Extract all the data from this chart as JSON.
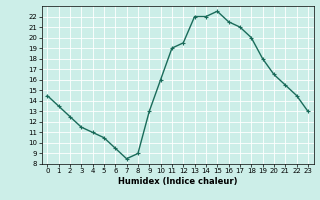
{
  "x": [
    0,
    1,
    2,
    3,
    4,
    5,
    6,
    7,
    8,
    9,
    10,
    11,
    12,
    13,
    14,
    15,
    16,
    17,
    18,
    19,
    20,
    21,
    22,
    23
  ],
  "y": [
    14.5,
    13.5,
    12.5,
    11.5,
    11.0,
    10.5,
    9.5,
    8.5,
    9.0,
    13.0,
    16.0,
    19.0,
    19.5,
    22.0,
    22.0,
    22.5,
    21.5,
    21.0,
    20.0,
    18.0,
    16.5,
    15.5,
    14.5,
    13.0
  ],
  "xlabel": "Humidex (Indice chaleur)",
  "ylim": [
    8,
    23
  ],
  "xlim": [
    -0.5,
    23.5
  ],
  "yticks": [
    8,
    9,
    10,
    11,
    12,
    13,
    14,
    15,
    16,
    17,
    18,
    19,
    20,
    21,
    22
  ],
  "xticks": [
    0,
    1,
    2,
    3,
    4,
    5,
    6,
    7,
    8,
    9,
    10,
    11,
    12,
    13,
    14,
    15,
    16,
    17,
    18,
    19,
    20,
    21,
    22,
    23
  ],
  "line_color": "#1a6b5a",
  "bg_color": "#cceee8",
  "grid_color": "#ffffff",
  "marker": "+",
  "marker_size": 3,
  "line_width": 1.0,
  "tick_fontsize": 5.0,
  "xlabel_fontsize": 6.0
}
